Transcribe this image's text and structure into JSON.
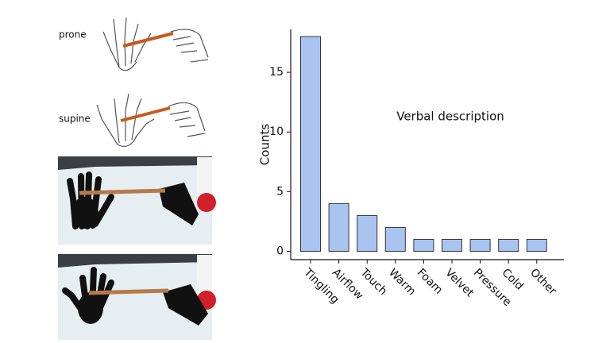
{
  "figure_labels": [
    "prone",
    "supine"
  ],
  "chart_data": {
    "type": "bar",
    "title": "Verbal description",
    "y_label": "Counts",
    "categories": [
      "Tingling",
      "Airflow",
      "Touch",
      "Warm",
      "Foam",
      "Velvet",
      "Pressure",
      "Cold",
      "Other"
    ],
    "values": [
      18,
      4,
      3,
      2,
      1,
      1,
      1,
      1,
      1
    ],
    "color": "#a9c4f0",
    "edge_color": "#333333",
    "ylim": [
      -0.7,
      18.6
    ],
    "yticks": [
      0,
      5,
      10,
      15
    ],
    "grid": false
  }
}
